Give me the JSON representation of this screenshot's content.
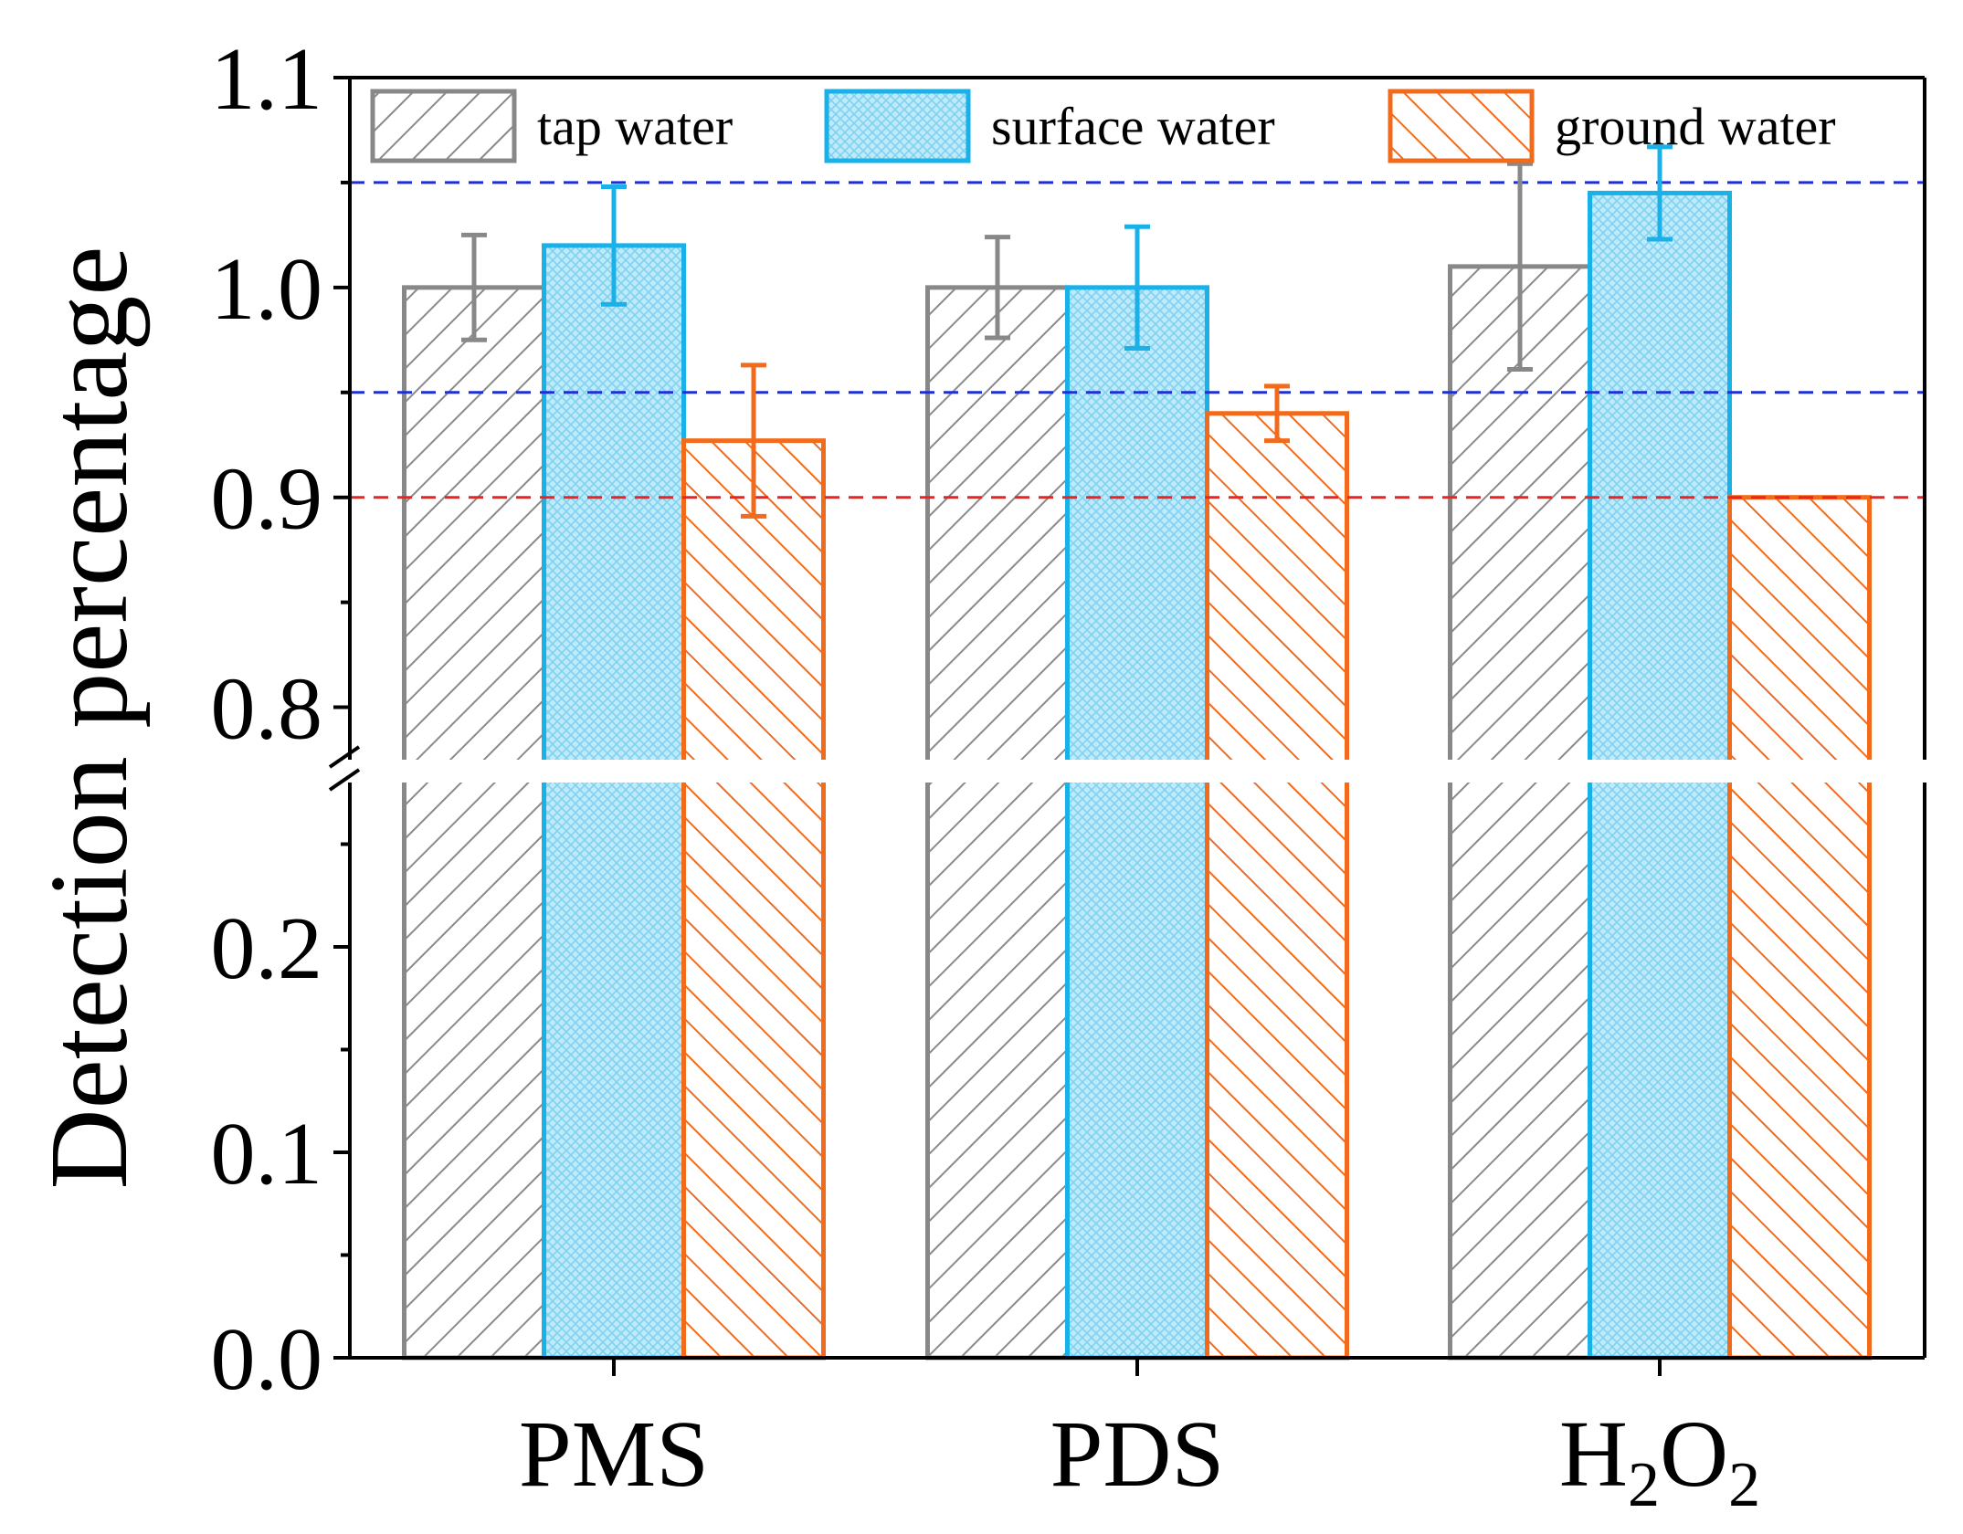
{
  "chart_data": {
    "type": "bar",
    "title": "",
    "xlabel": "",
    "ylabel": "Detection percentage",
    "categories": [
      "PMS",
      "PDS",
      "H2O2"
    ],
    "category_display": [
      {
        "parts": [
          {
            "t": "PMS",
            "sub": false
          }
        ]
      },
      {
        "parts": [
          {
            "t": "PDS",
            "sub": false
          }
        ]
      },
      {
        "parts": [
          {
            "t": "H",
            "sub": false
          },
          {
            "t": "2",
            "sub": true
          },
          {
            "t": "O",
            "sub": false
          },
          {
            "t": "2",
            "sub": true
          }
        ]
      }
    ],
    "series": [
      {
        "name": "tap water",
        "color": "#888888",
        "fill": "#ffffff",
        "pattern": "diag-up",
        "values": [
          1.0,
          1.0,
          1.01
        ],
        "errors": [
          0.025,
          0.024,
          0.049
        ]
      },
      {
        "name": "surface water",
        "color": "#1ab0e8",
        "fill": "#bfeaf9",
        "pattern": "crosshatch",
        "values": [
          1.02,
          1.0,
          1.045
        ],
        "errors": [
          0.028,
          0.029,
          0.022
        ]
      },
      {
        "name": "ground water",
        "color": "#f26a1b",
        "fill": "#ffffff",
        "pattern": "diag-down",
        "values": [
          0.927,
          0.94,
          0.9
        ],
        "errors": [
          0.036,
          0.013,
          0.0
        ]
      }
    ],
    "axis": {
      "broken": true,
      "lower_range": [
        0.0,
        0.28
      ],
      "upper_range": [
        0.775,
        1.1
      ],
      "lower_ticks": [
        "0.0",
        "0.1",
        "0.2"
      ],
      "upper_ticks": [
        "0.8",
        "0.9",
        "1.0",
        "1.1"
      ]
    },
    "reference_lines": [
      {
        "value": 1.05,
        "color": "#1f2fd6",
        "style": "dashed"
      },
      {
        "value": 0.95,
        "color": "#1f2fd6",
        "style": "dashed"
      },
      {
        "value": 0.9,
        "color": "#ee2222",
        "style": "dashed"
      }
    ],
    "legend": {
      "position": "top",
      "orientation": "horizontal"
    },
    "grid": false
  }
}
